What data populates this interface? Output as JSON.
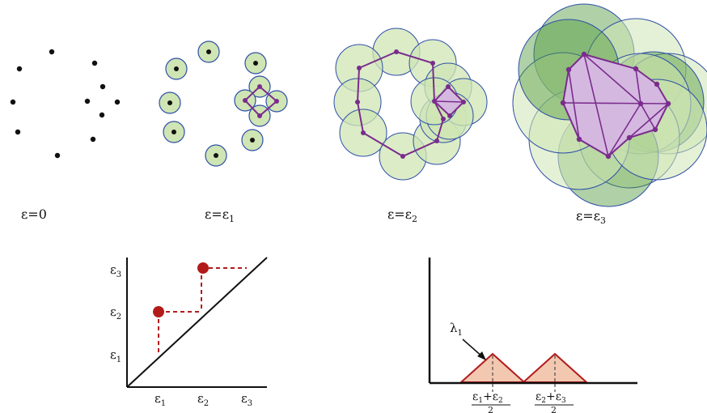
{
  "panels": [
    {
      "id": "p0",
      "caption": "ε=0",
      "eps_symbol": "ε",
      "eq": "=",
      "sub": "0"
    },
    {
      "id": "p1",
      "caption": "ε=ε1",
      "eps_symbol": "ε",
      "eq": "=",
      "rhs": "ε",
      "sub": "1"
    },
    {
      "id": "p2",
      "caption": "ε=ε2",
      "eps_symbol": "ε",
      "eq": "=",
      "rhs": "ε",
      "sub": "2"
    },
    {
      "id": "p3",
      "caption": "ε=ε3",
      "eps_symbol": "ε",
      "eq": "=",
      "rhs": "ε",
      "sub": "3"
    }
  ],
  "persistence_diagram": {
    "x_ticks": [
      {
        "base": "ε",
        "sub": "1"
      },
      {
        "base": "ε",
        "sub": "2"
      },
      {
        "base": "ε",
        "sub": "3"
      }
    ],
    "y_ticks": [
      {
        "base": "ε",
        "sub": "1"
      },
      {
        "base": "ε",
        "sub": "2"
      },
      {
        "base": "ε",
        "sub": "3"
      }
    ],
    "points": [
      {
        "birth": "ε1",
        "death": "ε2"
      },
      {
        "birth": "ε2",
        "death": "ε3"
      }
    ]
  },
  "landscape": {
    "lambda_label": {
      "base": "λ",
      "sub": "1"
    },
    "peak_labels": [
      {
        "num_a": "ε",
        "sub_a": "1",
        "plus": "+",
        "num_b": "ε",
        "sub_b": "2",
        "den": "2"
      },
      {
        "num_a": "ε",
        "sub_a": "2",
        "plus": "+",
        "num_b": "ε",
        "sub_b": "3",
        "den": "2"
      }
    ]
  },
  "colors": {
    "point": "#111111",
    "disk_fill": "#cfe5b4",
    "disk_stroke": "#2f4fa8",
    "disk_dark": "#4f9a3c",
    "simplex_edge": "#7a2c8c",
    "simplex_fill": "#d4b8e0",
    "diagram_point": "#b31b1b",
    "tent_fill": "#f3c8b0",
    "tent_edge": "#b31b1b"
  }
}
